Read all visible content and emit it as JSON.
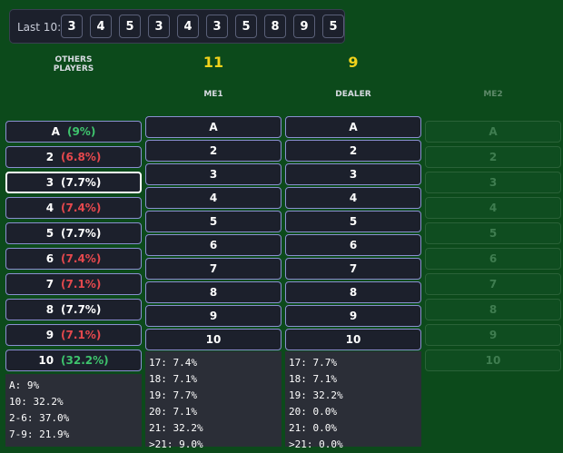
{
  "last10": {
    "label": "Last 10:",
    "cards": [
      "3",
      "4",
      "5",
      "3",
      "4",
      "3",
      "5",
      "8",
      "9",
      "5"
    ]
  },
  "others": {
    "header": "OTHERS PLAYERS",
    "selected": 2,
    "rows": [
      {
        "card": "A",
        "pct": "(9%)",
        "color": "#3ec46d"
      },
      {
        "card": "2",
        "pct": "(6.8%)",
        "color": "#e5484d"
      },
      {
        "card": "3",
        "pct": "(7.7%)",
        "color": "#ffffff"
      },
      {
        "card": "4",
        "pct": "(7.4%)",
        "color": "#e5484d"
      },
      {
        "card": "5",
        "pct": "(7.7%)",
        "color": "#ffffff"
      },
      {
        "card": "6",
        "pct": "(7.4%)",
        "color": "#e5484d"
      },
      {
        "card": "7",
        "pct": "(7.1%)",
        "color": "#e5484d"
      },
      {
        "card": "8",
        "pct": "(7.7%)",
        "color": "#ffffff"
      },
      {
        "card": "9",
        "pct": "(7.1%)",
        "color": "#e5484d"
      },
      {
        "card": "10",
        "pct": "(32.2%)",
        "color": "#3ec46d"
      }
    ],
    "stats": [
      "A: 9%",
      "10: 32.2%",
      "2-6: 37.0%",
      "7-9: 21.9%"
    ]
  },
  "me1": {
    "total": 11,
    "label": "ME1",
    "buttons": [
      "A",
      "2",
      "3",
      "4",
      "5",
      "6",
      "7",
      "8",
      "9",
      "10"
    ],
    "stats": [
      "17: 7.4%",
      "18: 7.1%",
      "19: 7.7%",
      "20: 7.1%",
      "21: 32.2%",
      ">21: 9.0%"
    ]
  },
  "dealer": {
    "total": 9,
    "label": "DEALER",
    "buttons": [
      "A",
      "2",
      "3",
      "4",
      "5",
      "6",
      "7",
      "8",
      "9",
      "10"
    ],
    "stats": [
      "17: 7.7%",
      "18: 7.1%",
      "19: 32.2%",
      "20: 0.0%",
      "21: 0.0%",
      ">21: 0.0%"
    ]
  },
  "me2": {
    "label": "ME2",
    "buttons": [
      "A",
      "2",
      "3",
      "4",
      "5",
      "6",
      "7",
      "8",
      "9",
      "10"
    ]
  }
}
